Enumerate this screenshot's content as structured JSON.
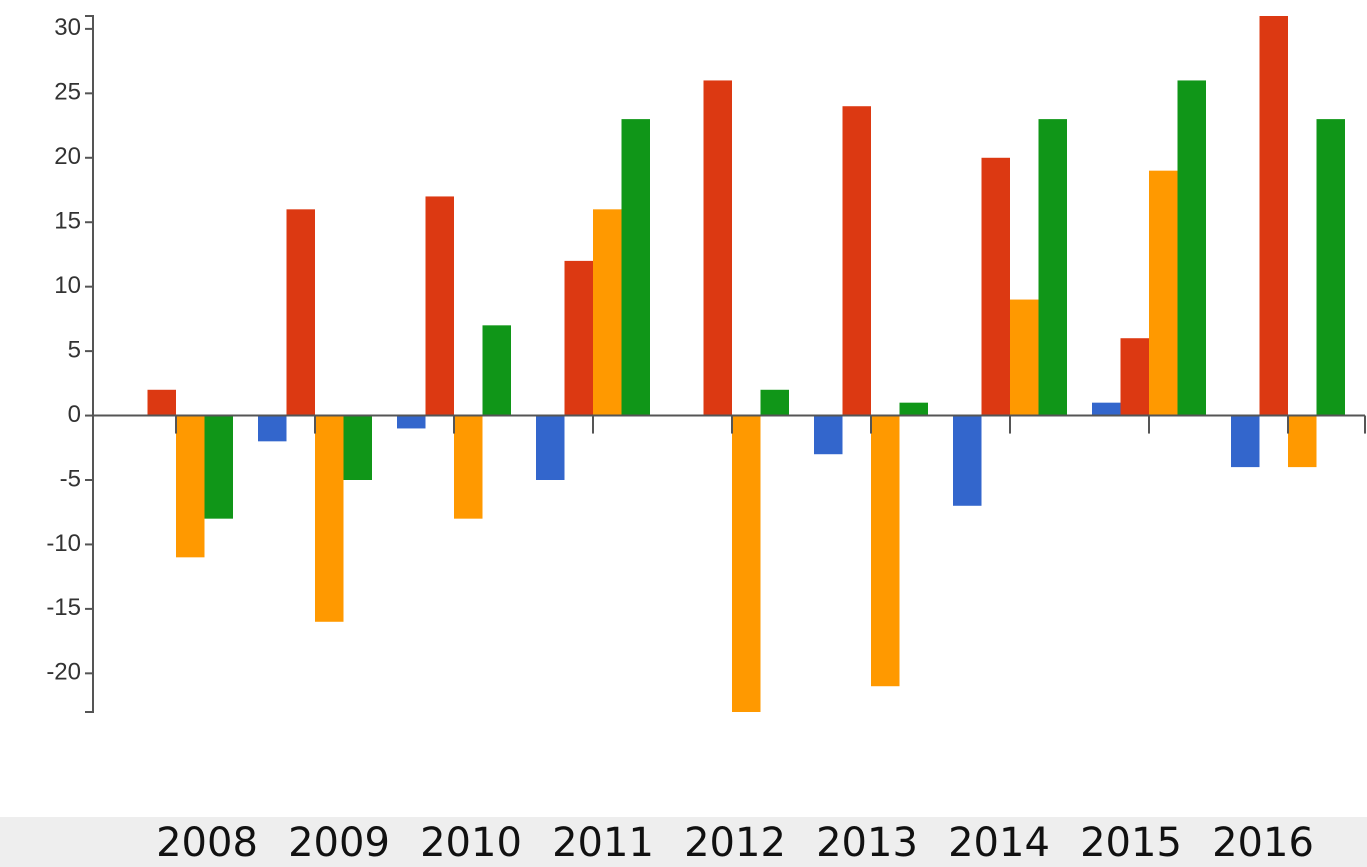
{
  "chart_data": {
    "type": "bar",
    "categories": [
      "2008",
      "2009",
      "2010",
      "2011",
      "2012",
      "2013",
      "2014",
      "2015",
      "2016"
    ],
    "series": [
      {
        "color": "#3366cc",
        "values": [
          0,
          -2,
          -1,
          -5,
          0,
          -3,
          -7,
          1,
          -4
        ]
      },
      {
        "color": "#dc3912",
        "values": [
          2,
          16,
          17,
          12,
          26,
          24,
          20,
          6,
          31
        ]
      },
      {
        "color": "#ff9900",
        "values": [
          -11,
          -16,
          -8,
          16,
          -23,
          -21,
          9,
          19,
          -4
        ]
      },
      {
        "color": "#109618",
        "values": [
          -8,
          -5,
          7,
          23,
          2,
          1,
          23,
          26,
          23
        ]
      }
    ],
    "ylim": [
      -23,
      31
    ],
    "yticks": [
      -20,
      -15,
      -10,
      -5,
      0,
      5,
      10,
      15,
      20,
      25,
      30
    ],
    "grid": false
  }
}
